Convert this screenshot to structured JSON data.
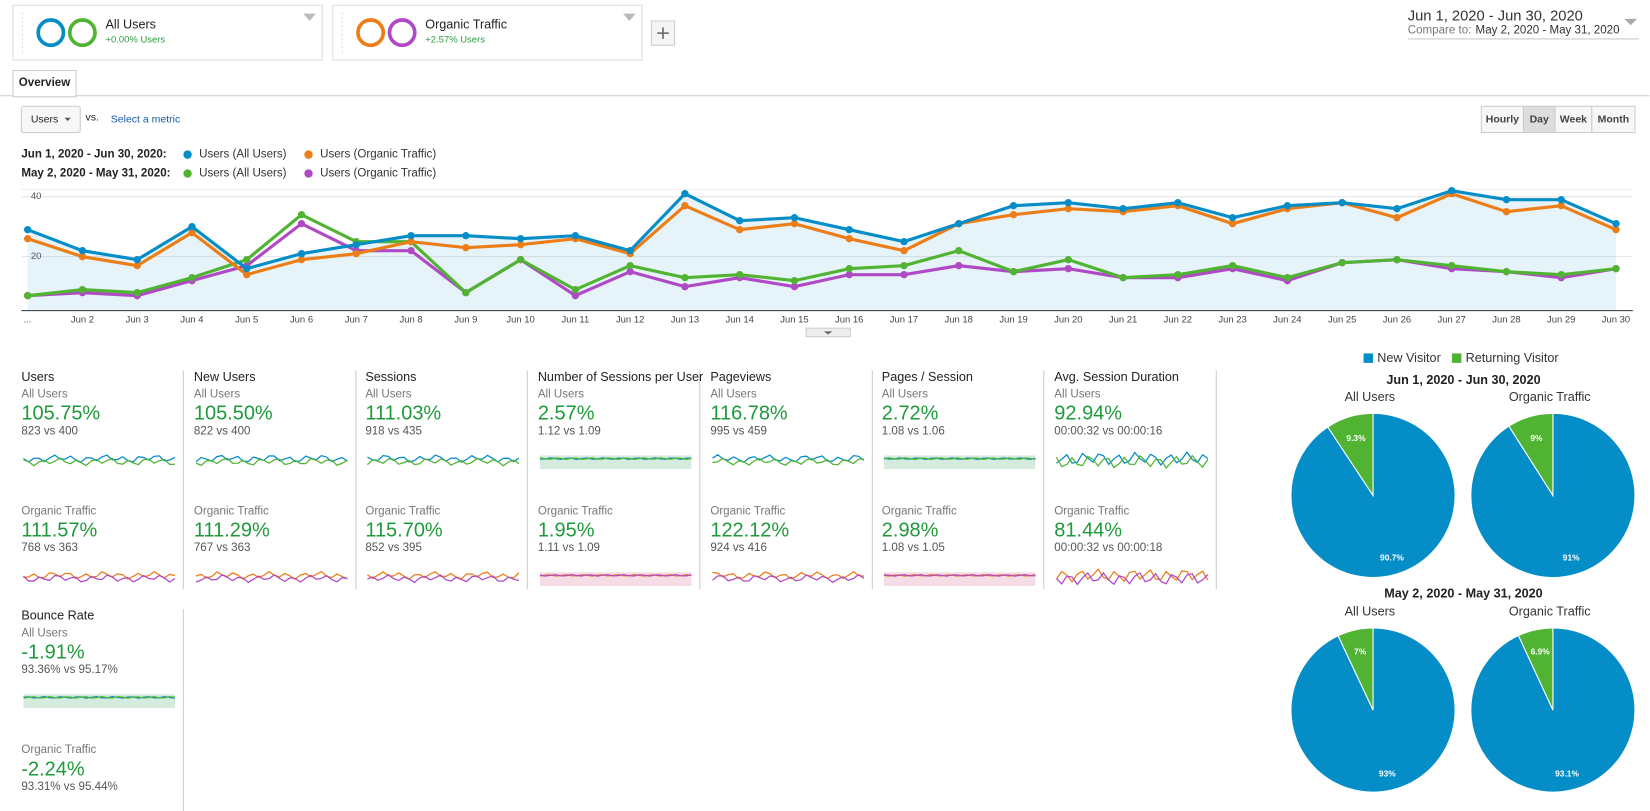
{
  "segments": [
    {
      "name": "All Users",
      "change": "+0.00% Users",
      "colors": [
        "#058dc7",
        "#50b432"
      ]
    },
    {
      "name": "Organic Traffic",
      "change": "+2.57% Users",
      "colors": [
        "#ed7e17",
        "#af49c5"
      ]
    }
  ],
  "date_range": {
    "current": "Jun 1, 2020 - Jun 30, 2020",
    "compare_label": "Compare to:",
    "compare": "May 2, 2020 - May 31, 2020"
  },
  "tabs": [
    "Overview"
  ],
  "controls": {
    "metric": "Users",
    "vs": "vs.",
    "select_metric": "Select a metric",
    "intervals": [
      {
        "label": "Hourly"
      },
      {
        "label": "Day",
        "selected": true
      },
      {
        "label": "Week"
      },
      {
        "label": "Month"
      }
    ]
  },
  "chart_data": {
    "type": "line",
    "period_labels": [
      "Jun 1, 2020 - Jun 30, 2020:",
      "May 2, 2020 - May 31, 2020:"
    ],
    "categories": [
      "...",
      "Jun 2",
      "Jun 3",
      "Jun 4",
      "Jun 5",
      "Jun 6",
      "Jun 7",
      "Jun 8",
      "Jun 9",
      "Jun 10",
      "Jun 11",
      "Jun 12",
      "Jun 13",
      "Jun 14",
      "Jun 15",
      "Jun 16",
      "Jun 17",
      "Jun 18",
      "Jun 19",
      "Jun 20",
      "Jun 21",
      "Jun 22",
      "Jun 23",
      "Jun 24",
      "Jun 25",
      "Jun 26",
      "Jun 27",
      "Jun 28",
      "Jun 29",
      "Jun 30"
    ],
    "series": [
      {
        "name": "Users (All Users)",
        "color": "#058dc7",
        "area": true,
        "values": [
          29,
          22,
          19,
          30,
          16,
          21,
          24,
          27,
          27,
          26,
          27,
          22,
          41,
          32,
          33,
          29,
          25,
          31,
          37,
          38,
          36,
          38,
          33,
          37,
          38,
          36,
          42,
          39,
          39,
          31
        ]
      },
      {
        "name": "Users (Organic Traffic)",
        "color": "#ed7e17",
        "values": [
          26,
          20,
          17,
          28,
          14,
          19,
          21,
          25,
          23,
          24,
          26,
          21,
          37,
          29,
          31,
          26,
          22,
          31,
          34,
          36,
          35,
          37,
          31,
          36,
          38,
          33,
          41,
          35,
          37,
          29
        ]
      },
      {
        "name": "Users (All Users)",
        "color": "#50b432",
        "values": [
          7,
          9,
          8,
          13,
          19,
          34,
          25,
          25,
          8,
          19,
          9,
          17,
          13,
          14,
          12,
          16,
          17,
          22,
          15,
          19,
          13,
          14,
          17,
          13,
          18,
          19,
          17,
          15,
          14,
          16
        ]
      },
      {
        "name": "Users (Organic Traffic)",
        "color": "#af49c5",
        "values": [
          7,
          8,
          7,
          12,
          17,
          31,
          22,
          22,
          8,
          19,
          7,
          15,
          10,
          13,
          10,
          14,
          14,
          17,
          15,
          16,
          13,
          13,
          16,
          12,
          18,
          19,
          16,
          15,
          13,
          16
        ]
      }
    ],
    "ylim": [
      2,
      42
    ],
    "yticks": [
      20,
      40
    ],
    "grid": true
  },
  "metrics": [
    {
      "name": "Users",
      "segments": [
        {
          "segment": "All Users",
          "change": "105.75%",
          "comparison": "823 vs 400"
        },
        {
          "segment": "Organic Traffic",
          "change": "111.57%",
          "comparison": "768 vs 363"
        }
      ]
    },
    {
      "name": "New Users",
      "segments": [
        {
          "segment": "All Users",
          "change": "105.50%",
          "comparison": "822 vs 400"
        },
        {
          "segment": "Organic Traffic",
          "change": "111.29%",
          "comparison": "767 vs 363"
        }
      ]
    },
    {
      "name": "Sessions",
      "segments": [
        {
          "segment": "All Users",
          "change": "111.03%",
          "comparison": "918 vs 435"
        },
        {
          "segment": "Organic Traffic",
          "change": "115.70%",
          "comparison": "852 vs 395"
        }
      ]
    },
    {
      "name": "Number of Sessions per User",
      "segments": [
        {
          "segment": "All Users",
          "change": "2.57%",
          "comparison": "1.12 vs 1.09"
        },
        {
          "segment": "Organic Traffic",
          "change": "1.95%",
          "comparison": "1.11 vs 1.09"
        }
      ]
    },
    {
      "name": "Pageviews",
      "segments": [
        {
          "segment": "All Users",
          "change": "116.78%",
          "comparison": "995 vs 459"
        },
        {
          "segment": "Organic Traffic",
          "change": "122.12%",
          "comparison": "924 vs 416"
        }
      ]
    },
    {
      "name": "Pages / Session",
      "segments": [
        {
          "segment": "All Users",
          "change": "2.72%",
          "comparison": "1.08 vs 1.06"
        },
        {
          "segment": "Organic Traffic",
          "change": "2.98%",
          "comparison": "1.08 vs 1.05"
        }
      ]
    },
    {
      "name": "Avg. Session Duration",
      "segments": [
        {
          "segment": "All Users",
          "change": "92.94%",
          "comparison": "00:00:32 vs 00:00:16"
        },
        {
          "segment": "Organic Traffic",
          "change": "81.44%",
          "comparison": "00:00:32 vs 00:00:18"
        }
      ]
    },
    {
      "name": "Bounce Rate",
      "segments": [
        {
          "segment": "All Users",
          "change": "-1.91%",
          "comparison": "93.36% vs 95.17%"
        },
        {
          "segment": "Organic Traffic",
          "change": "-2.24%",
          "comparison": "93.31% vs 95.44%"
        }
      ]
    }
  ],
  "pies": {
    "legend": [
      {
        "name": "New Visitor",
        "color": "#058dc7"
      },
      {
        "name": "Returning Visitor",
        "color": "#50b432"
      }
    ],
    "groups": [
      {
        "title": "Jun 1, 2020 - Jun 30, 2020",
        "charts": [
          {
            "type": "pie",
            "title": "All Users",
            "values": [
              90.7,
              9.3
            ],
            "value_labels": [
              "90.7%",
              "9.3%"
            ]
          },
          {
            "type": "pie",
            "title": "Organic Traffic",
            "values": [
              91,
              9
            ],
            "value_labels": [
              "91%",
              "9%"
            ]
          }
        ]
      },
      {
        "title": "May 2, 2020 - May 31, 2020",
        "charts": [
          {
            "type": "pie",
            "title": "All Users",
            "values": [
              93,
              7
            ],
            "value_labels": [
              "93%",
              "7%"
            ]
          },
          {
            "type": "pie",
            "title": "Organic Traffic",
            "values": [
              93.1,
              6.9
            ],
            "value_labels": [
              "93.1%",
              "6.9%"
            ]
          }
        ]
      }
    ]
  }
}
